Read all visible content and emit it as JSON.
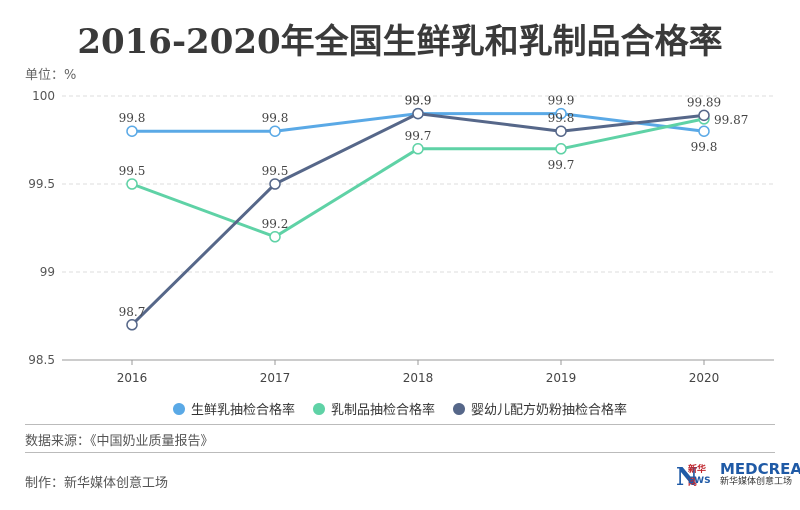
{
  "title": "2016-2020年全国生鲜乳和乳制品合格率",
  "unit_label": "单位：%",
  "chart_data": {
    "type": "line",
    "categories": [
      "2016",
      "2017",
      "2018",
      "2019",
      "2020"
    ],
    "ylim": [
      98.5,
      100
    ],
    "yticks": [
      "98.5",
      "99",
      "99.5",
      "100"
    ],
    "grid": true,
    "series": [
      {
        "name": "生鲜乳抽检合格率",
        "color": "#5aa9e6",
        "values": [
          99.8,
          99.8,
          99.9,
          99.9,
          99.8
        ],
        "labels": [
          "99.8",
          "99.8",
          "99.9",
          "99.9",
          "99.8"
        ],
        "label_pos": [
          "above",
          "above",
          "above",
          "above",
          "below"
        ]
      },
      {
        "name": "乳制品抽检合格率",
        "color": "#5fd2a6",
        "values": [
          99.5,
          99.2,
          99.7,
          99.7,
          99.87
        ],
        "labels": [
          "99.5",
          "99.2",
          "99.7",
          "99.7",
          "99.87"
        ],
        "label_pos": [
          "above",
          "above",
          "above",
          "below",
          "right"
        ]
      },
      {
        "name": "婴幼儿配方奶粉抽检合格率",
        "color": "#566789",
        "values": [
          98.7,
          99.5,
          99.9,
          99.8,
          99.89
        ],
        "labels": [
          "98.7",
          "99.5",
          "99.9",
          "99.8",
          "99.89"
        ],
        "label_pos": [
          "above",
          "above",
          "above",
          "above",
          "above"
        ]
      }
    ]
  },
  "source": "数据来源：《中国奶业质量报告》",
  "credit": "制作：新华媒体创意工场",
  "logos": {
    "xinhua_letter": "N",
    "xinhua_top": "新华网",
    "xinhua_bottom": "EWS",
    "mc_top": "MEDCREATIVE",
    "mc_bottom": "新华媒体创意工场"
  }
}
